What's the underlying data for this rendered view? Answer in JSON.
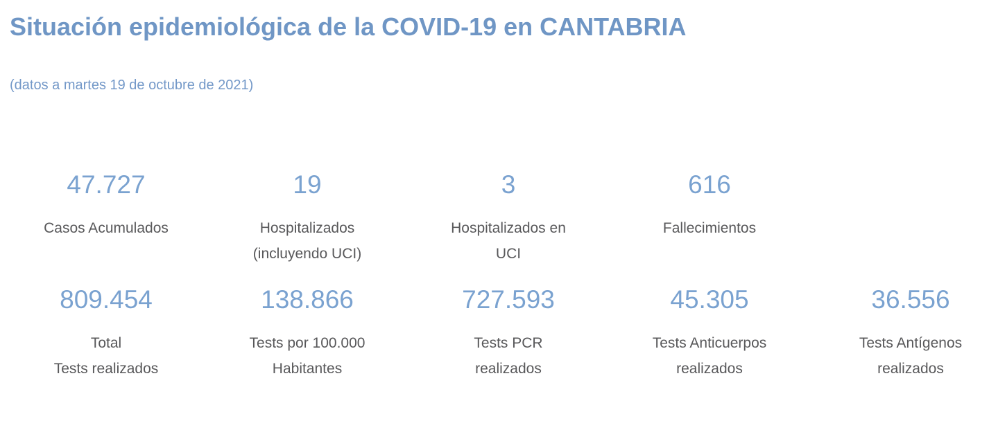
{
  "page": {
    "title": "Situación epidemiológica de la COVID-19 en CANTABRIA",
    "subtitle": "(datos a martes 19 de octubre de 2021)"
  },
  "colors": {
    "title_blue": "#6f96c5",
    "subtitle_blue": "#7398c8",
    "value_blue": "#7aa2d0",
    "label_gray": "#58585a",
    "background": "#ffffff"
  },
  "stats": {
    "rows": [
      {
        "tiles": [
          {
            "value": "47.727",
            "label_lines": [
              "Casos Acumulados"
            ]
          },
          {
            "value": "19",
            "label_lines": [
              "Hospitalizados",
              "(incluyendo UCI)"
            ]
          },
          {
            "value": "3",
            "label_lines": [
              "Hospitalizados en",
              "UCI"
            ]
          },
          {
            "value": "616",
            "label_lines": [
              "Fallecimientos"
            ]
          }
        ]
      },
      {
        "tiles": [
          {
            "value": "809.454",
            "label_lines": [
              "Total",
              "Tests realizados"
            ]
          },
          {
            "value": "138.866",
            "label_lines": [
              "Tests por 100.000",
              "Habitantes"
            ]
          },
          {
            "value": "727.593",
            "label_lines": [
              "Tests PCR",
              "realizados"
            ]
          },
          {
            "value": "45.305",
            "label_lines": [
              "Tests Anticuerpos",
              "realizados"
            ]
          },
          {
            "value": "36.556",
            "label_lines": [
              "Tests Antígenos",
              "realizados"
            ]
          }
        ]
      }
    ]
  }
}
